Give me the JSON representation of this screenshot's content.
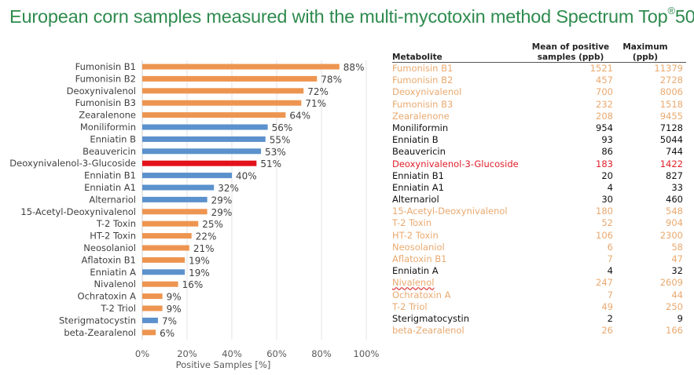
{
  "title": {
    "text": "European corn samples measured with the multi-mycotoxin method Spectrum Top",
    "sup": "®",
    "suffix": "50"
  },
  "colors": {
    "title": "#2e8b4e",
    "orange": "#ed9550",
    "blue": "#5b91cc",
    "red": "#e3111b",
    "table_orange": "#e9a96f",
    "table_black": "#111111",
    "table_red": "#e0202a"
  },
  "chart_data": {
    "type": "bar",
    "orientation": "horizontal",
    "title": "",
    "xlabel": "Positive Samples [%]",
    "ylabel": "",
    "xlim": [
      0,
      100
    ],
    "xticks": [
      "0%",
      "20%",
      "40%",
      "60%",
      "80%",
      "100%"
    ],
    "grid": true,
    "categories": [
      "Fumonisin B1",
      "Fumonisin B2",
      "Deoxynivalenol",
      "Fumonisin B3",
      "Zearalenone",
      "Moniliformin",
      "Enniatin B",
      "Beauvericin",
      "Deoxynivalenol-3-Glucoside",
      "Enniatin B1",
      "Enniatin A1",
      "Alternariol",
      "15-Acetyl-Deoxynivalenol",
      "T-2 Toxin",
      "HT-2 Toxin",
      "Neosolaniol",
      "Aflatoxin B1",
      "Enniatin A",
      "Nivalenol",
      "Ochratoxin A",
      "T-2 Triol",
      "Sterigmatocystin",
      "beta-Zearalenol"
    ],
    "values": [
      88,
      78,
      72,
      71,
      64,
      56,
      55,
      53,
      51,
      40,
      32,
      29,
      29,
      25,
      22,
      21,
      19,
      19,
      16,
      9,
      9,
      7,
      6
    ],
    "value_labels": [
      "88%",
      "78%",
      "72%",
      "71%",
      "64%",
      "56%",
      "55%",
      "53%",
      "51%",
      "40%",
      "32%",
      "29%",
      "29%",
      "25%",
      "22%",
      "21%",
      "19%",
      "19%",
      "16%",
      "9%",
      "9%",
      "7%",
      "6%"
    ],
    "bar_colors": [
      "orange",
      "orange",
      "orange",
      "orange",
      "orange",
      "blue",
      "blue",
      "blue",
      "red",
      "blue",
      "blue",
      "blue",
      "orange",
      "orange",
      "orange",
      "orange",
      "orange",
      "blue",
      "orange",
      "orange",
      "orange",
      "blue",
      "orange"
    ]
  },
  "table": {
    "headers": {
      "metabolite": "Metabolite",
      "mean_line1": "Mean of positive",
      "mean_line2": "samples (ppb)",
      "max_line1": "Maximum",
      "max_line2": "(ppb)"
    },
    "rows": [
      {
        "name": "Fumonisin B1",
        "mean": "1521",
        "max": "11379",
        "color": "orange"
      },
      {
        "name": "Fumonisin B2",
        "mean": "457",
        "max": "2728",
        "color": "orange"
      },
      {
        "name": "Deoxynivalenol",
        "mean": "700",
        "max": "8006",
        "color": "orange"
      },
      {
        "name": "Fumonisin B3",
        "mean": "232",
        "max": "1518",
        "color": "orange"
      },
      {
        "name": "Zearalenone",
        "mean": "208",
        "max": "9455",
        "color": "orange"
      },
      {
        "name": "Moniliformin",
        "mean": "954",
        "max": "7128",
        "color": "black"
      },
      {
        "name": "Enniatin B",
        "mean": "93",
        "max": "5044",
        "color": "black"
      },
      {
        "name": "Beauvericin",
        "mean": "86",
        "max": "744",
        "color": "black"
      },
      {
        "name": "Deoxynivalenol-3-Glucoside",
        "mean": "183",
        "max": "1422",
        "color": "red"
      },
      {
        "name": "Enniatin B1",
        "mean": "20",
        "max": "827",
        "color": "black"
      },
      {
        "name": "Enniatin A1",
        "mean": "4",
        "max": "33",
        "color": "black"
      },
      {
        "name": "Alternariol",
        "mean": "30",
        "max": "460",
        "color": "black"
      },
      {
        "name": "15-Acetyl-Deoxynivalenol",
        "mean": "180",
        "max": "548",
        "color": "orange"
      },
      {
        "name": "T-2 Toxin",
        "mean": "52",
        "max": "904",
        "color": "orange"
      },
      {
        "name": "HT-2 Toxin",
        "mean": "106",
        "max": "2300",
        "color": "orange"
      },
      {
        "name": "Neosolaniol",
        "mean": "6",
        "max": "58",
        "color": "orange"
      },
      {
        "name": "Aflatoxin B1",
        "mean": "7",
        "max": "47",
        "color": "orange"
      },
      {
        "name": "Enniatin A",
        "mean": "4",
        "max": "32",
        "color": "black"
      },
      {
        "name": "Nivalenol",
        "mean": "247",
        "max": "2609",
        "color": "orange",
        "spellcheck": true
      },
      {
        "name": "Ochratoxin A",
        "mean": "7",
        "max": "44",
        "color": "orange"
      },
      {
        "name": "T-2 Triol",
        "mean": "49",
        "max": "250",
        "color": "orange"
      },
      {
        "name": "Sterigmatocystin",
        "mean": "2",
        "max": "9",
        "color": "black"
      },
      {
        "name": "beta-Zearalenol",
        "mean": "26",
        "max": "166",
        "color": "orange"
      }
    ]
  }
}
